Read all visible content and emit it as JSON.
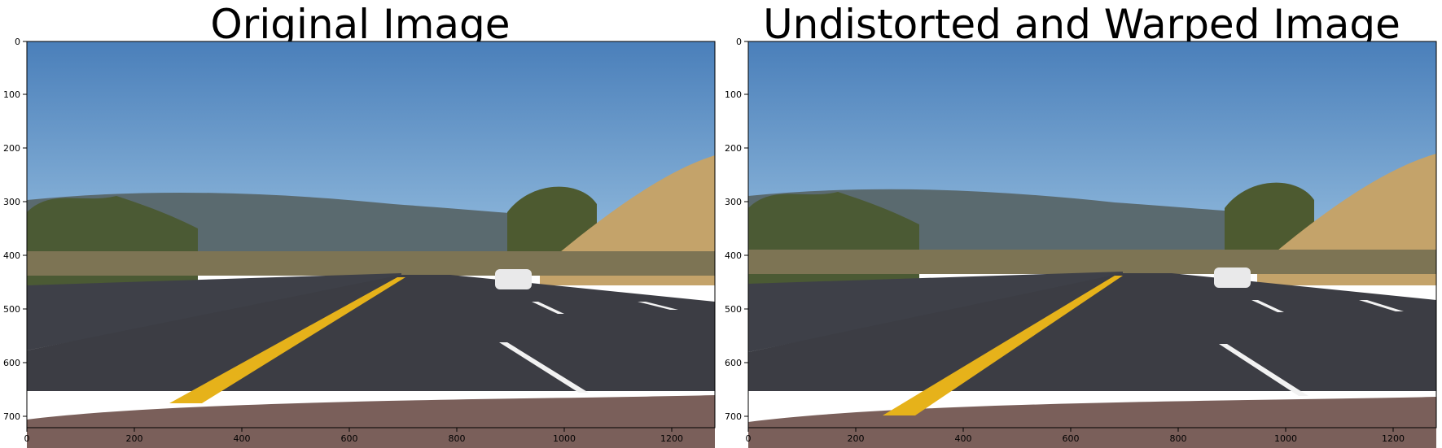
{
  "panels": [
    {
      "title": "Original Image",
      "y_ticks": [
        "0",
        "100",
        "200",
        "300",
        "400",
        "500",
        "600",
        "700"
      ],
      "x_ticks": [
        "0",
        "200",
        "400",
        "600",
        "800",
        "1000",
        "1200"
      ]
    },
    {
      "title": "Undistorted and Warped Image",
      "y_ticks": [
        "0",
        "100",
        "200",
        "300",
        "400",
        "500",
        "600",
        "700"
      ],
      "x_ticks": [
        "0",
        "200",
        "400",
        "600",
        "800",
        "1000",
        "1200"
      ]
    }
  ],
  "scene": {
    "sky_color": "#5f8fc4",
    "hill_color": "#c4a36a",
    "road_color": "#3c3d44",
    "lane_yellow": "#e6b21a",
    "lane_white": "#f2f2f2",
    "hood_color": "#7a5f5a"
  }
}
